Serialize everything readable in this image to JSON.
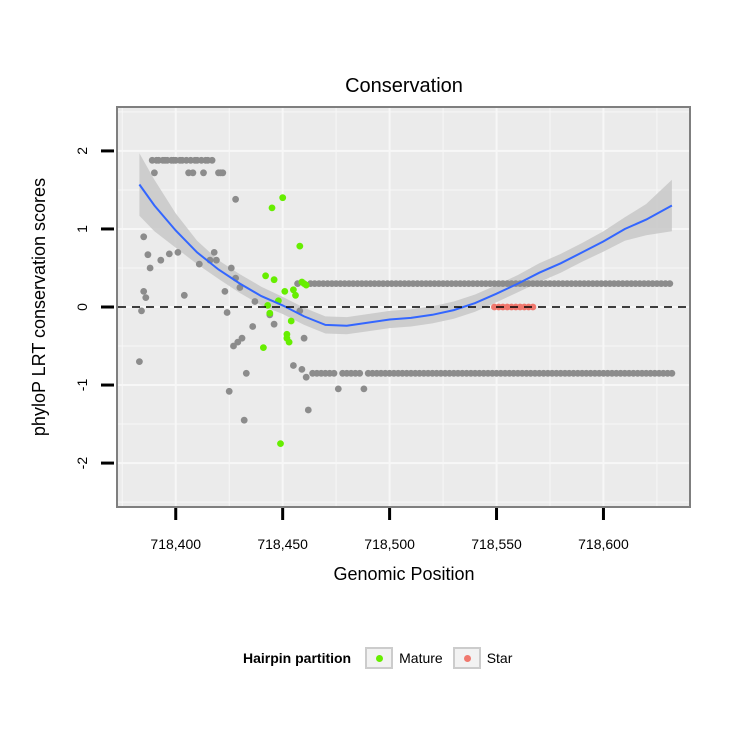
{
  "colors": {
    "panel_bg": "#ebebeb",
    "grid": "#f7f7f7",
    "panel_border": "#7f7f7f",
    "background_points": "#8c8c8c",
    "mature": "#66ee00",
    "star": "#f0786e",
    "smooth_line": "#3366ff",
    "ribbon": "#c8c8c8"
  },
  "legend": {
    "title": "Hairpin partition",
    "items": [
      {
        "label": "Mature",
        "color": "#66ee00"
      },
      {
        "label": "Star",
        "color": "#f0786e"
      }
    ]
  },
  "chart_data": {
    "type": "scatter",
    "title": "Conservation",
    "xlabel": "Genomic Position",
    "ylabel": "phyloP LRT conservation scores",
    "xlim": [
      718373,
      718640
    ],
    "ylim": [
      -2.55,
      2.55
    ],
    "x_ticks": [
      718400,
      718450,
      718500,
      718550,
      718600
    ],
    "x_tick_labels": [
      "718,400",
      "718,450",
      "718,500",
      "718,550",
      "718,600"
    ],
    "y_ticks": [
      -2,
      -1,
      0,
      1,
      2
    ],
    "y_tick_labels": [
      "-2",
      "-1",
      "0",
      "1",
      "2"
    ],
    "grid": true,
    "reference_line": {
      "y": 0,
      "style": "dashed"
    },
    "series": [
      {
        "name": "background",
        "points": [
          [
            718383,
            -0.7
          ],
          [
            718384,
            -0.05
          ],
          [
            718385,
            0.2
          ],
          [
            718385,
            0.9
          ],
          [
            718386,
            0.12
          ],
          [
            718387,
            0.67
          ],
          [
            718388,
            0.5
          ],
          [
            718389,
            1.88
          ],
          [
            718390,
            1.72
          ],
          [
            718391,
            1.88
          ],
          [
            718392,
            1.88
          ],
          [
            718393,
            0.6
          ],
          [
            718394,
            1.88
          ],
          [
            718395,
            1.88
          ],
          [
            718396,
            1.88
          ],
          [
            718397,
            0.68
          ],
          [
            718398,
            1.88
          ],
          [
            718399,
            1.88
          ],
          [
            718400,
            1.88
          ],
          [
            718401,
            0.7
          ],
          [
            718402,
            1.88
          ],
          [
            718403,
            1.88
          ],
          [
            718404,
            0.15
          ],
          [
            718405,
            1.88
          ],
          [
            718406,
            1.72
          ],
          [
            718407,
            1.88
          ],
          [
            718408,
            1.72
          ],
          [
            718409,
            1.88
          ],
          [
            718410,
            1.88
          ],
          [
            718411,
            0.55
          ],
          [
            718412,
            1.88
          ],
          [
            718413,
            1.72
          ],
          [
            718414,
            1.88
          ],
          [
            718415,
            1.88
          ],
          [
            718416,
            0.6
          ],
          [
            718417,
            1.88
          ],
          [
            718418,
            0.7
          ],
          [
            718419,
            0.6
          ],
          [
            718420,
            1.72
          ],
          [
            718421,
            1.72
          ],
          [
            718422,
            1.72
          ],
          [
            718423,
            0.2
          ],
          [
            718424,
            -0.07
          ],
          [
            718425,
            -1.08
          ],
          [
            718426,
            0.5
          ],
          [
            718427,
            -0.5
          ],
          [
            718428,
            1.38
          ],
          [
            718428,
            0.37
          ],
          [
            718429,
            -0.45
          ],
          [
            718430,
            0.25
          ],
          [
            718431,
            -0.4
          ],
          [
            718432,
            -1.45
          ],
          [
            718433,
            -0.85
          ],
          [
            718436,
            -0.25
          ],
          [
            718437,
            0.07
          ],
          [
            718444,
            -0.1
          ],
          [
            718446,
            -0.22
          ],
          [
            718455,
            -0.75
          ],
          [
            718457,
            0.3
          ],
          [
            718458,
            -0.05
          ],
          [
            718459,
            -0.8
          ],
          [
            718460,
            -0.4
          ],
          [
            718461,
            -0.9
          ],
          [
            718462,
            -1.32
          ],
          [
            718463,
            0.3
          ],
          [
            718464,
            -0.85
          ],
          [
            718465,
            0.3
          ],
          [
            718466,
            -0.85
          ],
          [
            718467,
            0.3
          ],
          [
            718468,
            -0.85
          ],
          [
            718469,
            0.3
          ],
          [
            718470,
            -0.85
          ],
          [
            718471,
            0.3
          ],
          [
            718472,
            -0.85
          ],
          [
            718473,
            0.3
          ],
          [
            718474,
            -0.85
          ],
          [
            718475,
            0.3
          ],
          [
            718476,
            -1.05
          ],
          [
            718477,
            0.3
          ],
          [
            718478,
            -0.85
          ],
          [
            718479,
            0.3
          ],
          [
            718480,
            -0.85
          ],
          [
            718481,
            0.3
          ],
          [
            718482,
            -0.85
          ],
          [
            718483,
            0.3
          ],
          [
            718484,
            -0.85
          ],
          [
            718485,
            0.3
          ],
          [
            718486,
            -0.85
          ],
          [
            718487,
            0.3
          ],
          [
            718488,
            -1.05
          ],
          [
            718489,
            0.3
          ],
          [
            718490,
            -0.85
          ],
          [
            718491,
            0.3
          ],
          [
            718492,
            -0.85
          ],
          [
            718493,
            0.3
          ],
          [
            718494,
            -0.85
          ],
          [
            718495,
            0.3
          ],
          [
            718496,
            -0.85
          ],
          [
            718497,
            0.3
          ],
          [
            718498,
            -0.85
          ],
          [
            718499,
            0.3
          ],
          [
            718500,
            -0.85
          ],
          [
            718501,
            0.3
          ],
          [
            718502,
            -0.85
          ],
          [
            718503,
            0.3
          ],
          [
            718504,
            -0.85
          ],
          [
            718505,
            0.3
          ],
          [
            718506,
            -0.85
          ],
          [
            718507,
            0.3
          ],
          [
            718508,
            -0.85
          ],
          [
            718509,
            0.3
          ],
          [
            718510,
            -0.85
          ],
          [
            718511,
            0.3
          ],
          [
            718512,
            -0.85
          ],
          [
            718513,
            0.3
          ],
          [
            718514,
            -0.85
          ],
          [
            718515,
            0.3
          ],
          [
            718516,
            -0.85
          ],
          [
            718517,
            0.3
          ],
          [
            718518,
            -0.85
          ],
          [
            718519,
            0.3
          ],
          [
            718520,
            -0.85
          ],
          [
            718521,
            0.3
          ],
          [
            718522,
            -0.85
          ],
          [
            718523,
            0.3
          ],
          [
            718524,
            -0.85
          ],
          [
            718525,
            0.3
          ],
          [
            718526,
            -0.85
          ],
          [
            718527,
            0.3
          ],
          [
            718528,
            -0.85
          ],
          [
            718529,
            0.3
          ],
          [
            718530,
            -0.85
          ],
          [
            718531,
            0.3
          ],
          [
            718532,
            -0.85
          ],
          [
            718533,
            0.3
          ],
          [
            718534,
            -0.85
          ],
          [
            718535,
            0.3
          ],
          [
            718536,
            -0.85
          ],
          [
            718537,
            0.3
          ],
          [
            718538,
            -0.85
          ],
          [
            718539,
            0.3
          ],
          [
            718540,
            -0.85
          ],
          [
            718541,
            0.3
          ],
          [
            718542,
            -0.85
          ],
          [
            718543,
            0.3
          ],
          [
            718544,
            -0.85
          ],
          [
            718545,
            0.3
          ],
          [
            718546,
            -0.85
          ],
          [
            718547,
            0.3
          ],
          [
            718548,
            -0.85
          ],
          [
            718549,
            0.3
          ],
          [
            718550,
            -0.85
          ],
          [
            718551,
            0.3
          ],
          [
            718552,
            -0.85
          ],
          [
            718553,
            0.3
          ],
          [
            718554,
            -0.85
          ],
          [
            718555,
            0.3
          ],
          [
            718556,
            -0.85
          ],
          [
            718557,
            0.3
          ],
          [
            718558,
            -0.85
          ],
          [
            718559,
            0.3
          ],
          [
            718560,
            -0.85
          ],
          [
            718561,
            0.3
          ],
          [
            718562,
            -0.85
          ],
          [
            718563,
            0.3
          ],
          [
            718564,
            -0.85
          ],
          [
            718565,
            0.3
          ],
          [
            718566,
            -0.85
          ],
          [
            718567,
            0.3
          ],
          [
            718568,
            -0.85
          ],
          [
            718569,
            0.3
          ],
          [
            718570,
            -0.85
          ],
          [
            718571,
            0.3
          ],
          [
            718572,
            -0.85
          ],
          [
            718573,
            0.3
          ],
          [
            718574,
            -0.85
          ],
          [
            718575,
            0.3
          ],
          [
            718576,
            -0.85
          ],
          [
            718577,
            0.3
          ],
          [
            718578,
            -0.85
          ],
          [
            718579,
            0.3
          ],
          [
            718580,
            -0.85
          ],
          [
            718581,
            0.3
          ],
          [
            718582,
            -0.85
          ],
          [
            718583,
            0.3
          ],
          [
            718584,
            -0.85
          ],
          [
            718585,
            0.3
          ],
          [
            718586,
            -0.85
          ],
          [
            718587,
            0.3
          ],
          [
            718588,
            -0.85
          ],
          [
            718589,
            0.3
          ],
          [
            718590,
            -0.85
          ],
          [
            718591,
            0.3
          ],
          [
            718592,
            -0.85
          ],
          [
            718593,
            0.3
          ],
          [
            718594,
            -0.85
          ],
          [
            718595,
            0.3
          ],
          [
            718596,
            -0.85
          ],
          [
            718597,
            0.3
          ],
          [
            718598,
            -0.85
          ],
          [
            718599,
            0.3
          ],
          [
            718600,
            -0.85
          ],
          [
            718601,
            0.3
          ],
          [
            718602,
            -0.85
          ],
          [
            718603,
            0.3
          ],
          [
            718604,
            -0.85
          ],
          [
            718605,
            0.3
          ],
          [
            718606,
            -0.85
          ],
          [
            718607,
            0.3
          ],
          [
            718608,
            -0.85
          ],
          [
            718609,
            0.3
          ],
          [
            718610,
            -0.85
          ],
          [
            718611,
            0.3
          ],
          [
            718612,
            -0.85
          ],
          [
            718613,
            0.3
          ],
          [
            718614,
            -0.85
          ],
          [
            718615,
            0.3
          ],
          [
            718616,
            -0.85
          ],
          [
            718617,
            0.3
          ],
          [
            718618,
            -0.85
          ],
          [
            718619,
            0.3
          ],
          [
            718620,
            -0.85
          ],
          [
            718621,
            0.3
          ],
          [
            718622,
            -0.85
          ],
          [
            718623,
            0.3
          ],
          [
            718624,
            -0.85
          ],
          [
            718625,
            0.3
          ],
          [
            718626,
            -0.85
          ],
          [
            718627,
            0.3
          ],
          [
            718628,
            -0.85
          ],
          [
            718629,
            0.3
          ],
          [
            718630,
            -0.85
          ],
          [
            718631,
            0.3
          ],
          [
            718632,
            -0.85
          ]
        ]
      },
      {
        "name": "Mature",
        "points": [
          [
            718441,
            -0.52
          ],
          [
            718442,
            0.4
          ],
          [
            718443,
            0.02
          ],
          [
            718444,
            -0.08
          ],
          [
            718445,
            1.27
          ],
          [
            718446,
            0.35
          ],
          [
            718448,
            0.08
          ],
          [
            718449,
            -1.75
          ],
          [
            718450,
            1.4
          ],
          [
            718451,
            0.2
          ],
          [
            718452,
            -0.4
          ],
          [
            718452,
            -0.35
          ],
          [
            718453,
            -0.45
          ],
          [
            718454,
            -0.18
          ],
          [
            718455,
            0.22
          ],
          [
            718456,
            0.15
          ],
          [
            718458,
            0.78
          ],
          [
            718459,
            0.32
          ],
          [
            718460,
            0.3
          ],
          [
            718461,
            0.28
          ]
        ]
      },
      {
        "name": "Star",
        "points": [
          [
            718549,
            0
          ],
          [
            718551,
            0
          ],
          [
            718553,
            0
          ],
          [
            718555,
            0
          ],
          [
            718557,
            0
          ],
          [
            718559,
            0
          ],
          [
            718561,
            0
          ],
          [
            718563,
            0
          ],
          [
            718565,
            0
          ],
          [
            718567,
            0
          ]
        ]
      }
    ],
    "smooth": {
      "x": [
        718383,
        718390,
        718400,
        718410,
        718420,
        718430,
        718440,
        718450,
        718460,
        718470,
        718480,
        718490,
        718500,
        718510,
        718520,
        718530,
        718540,
        718550,
        718560,
        718570,
        718580,
        718590,
        718600,
        718610,
        718620,
        718632
      ],
      "y": [
        1.57,
        1.3,
        0.98,
        0.7,
        0.48,
        0.3,
        0.14,
        0.02,
        -0.12,
        -0.23,
        -0.24,
        -0.2,
        -0.16,
        -0.14,
        -0.1,
        -0.04,
        0.05,
        0.17,
        0.3,
        0.44,
        0.56,
        0.7,
        0.84,
        1.0,
        1.12,
        1.3
      ],
      "ci_half_width": [
        0.4,
        0.33,
        0.22,
        0.15,
        0.12,
        0.12,
        0.12,
        0.11,
        0.11,
        0.11,
        0.11,
        0.11,
        0.11,
        0.11,
        0.11,
        0.11,
        0.11,
        0.11,
        0.11,
        0.12,
        0.12,
        0.12,
        0.13,
        0.15,
        0.2,
        0.33
      ]
    }
  }
}
